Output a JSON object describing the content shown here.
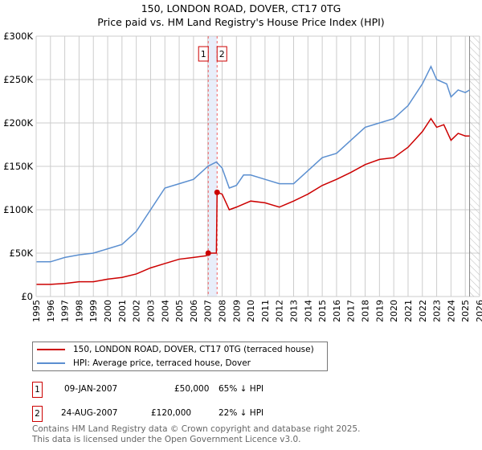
{
  "title_line1": "150, LONDON ROAD, DOVER, CT17 0TG",
  "title_line2": "Price paid vs. HM Land Registry's House Price Index (HPI)",
  "chart_data": {
    "type": "line",
    "xlim": [
      1995,
      2026
    ],
    "ylim": [
      0,
      300000
    ],
    "yticks": [
      {
        "v": 0,
        "label": "£0"
      },
      {
        "v": 50000,
        "label": "£50K"
      },
      {
        "v": 100000,
        "label": "£100K"
      },
      {
        "v": 150000,
        "label": "£150K"
      },
      {
        "v": 200000,
        "label": "£200K"
      },
      {
        "v": 250000,
        "label": "£250K"
      },
      {
        "v": 300000,
        "label": "£300K"
      }
    ],
    "xticks": [
      "1995",
      "1996",
      "1997",
      "1998",
      "1999",
      "2000",
      "2001",
      "2002",
      "2003",
      "2004",
      "2005",
      "2006",
      "2007",
      "2008",
      "2009",
      "2010",
      "2011",
      "2012",
      "2013",
      "2014",
      "2015",
      "2016",
      "2017",
      "2018",
      "2019",
      "2020",
      "2021",
      "2022",
      "2023",
      "2024",
      "2025",
      "2026"
    ],
    "grid": true,
    "forecast_hatch_from": 2025.3,
    "series": [
      {
        "name": "150, LONDON ROAD, DOVER, CT17 0TG (terraced house)",
        "color": "#cc0000",
        "x": [
          1995,
          1996,
          1997,
          1998,
          1999,
          2000,
          2001,
          2002,
          2003,
          2004,
          2005,
          2006,
          2006.9,
          2007.03,
          2007.6,
          2007.65,
          2008,
          2008.5,
          2009,
          2010,
          2011,
          2012,
          2013,
          2014,
          2015,
          2016,
          2017,
          2018,
          2019,
          2020,
          2021,
          2022,
          2022.6,
          2023,
          2023.5,
          2024,
          2024.5,
          2025,
          2025.3
        ],
        "y": [
          14000,
          14000,
          15000,
          17000,
          17000,
          20000,
          22000,
          26000,
          33000,
          38000,
          43000,
          45000,
          47000,
          50000,
          50000,
          120000,
          118000,
          100000,
          103000,
          110000,
          108000,
          103000,
          110000,
          118000,
          128000,
          135000,
          143000,
          152000,
          158000,
          160000,
          172000,
          190000,
          205000,
          195000,
          198000,
          180000,
          188000,
          185000,
          185000
        ]
      },
      {
        "name": "HPI: Average price, terraced house, Dover",
        "color": "#5b8fd0",
        "x": [
          1995,
          1996,
          1997,
          1998,
          1999,
          2000,
          2001,
          2002,
          2003,
          2004,
          2005,
          2006,
          2007,
          2007.6,
          2008,
          2008.5,
          2009,
          2009.5,
          2010,
          2011,
          2012,
          2013,
          2014,
          2015,
          2016,
          2017,
          2018,
          2019,
          2020,
          2021,
          2022,
          2022.6,
          2023,
          2023.7,
          2024,
          2024.5,
          2025,
          2025.3
        ],
        "y": [
          40000,
          40000,
          45000,
          48000,
          50000,
          55000,
          60000,
          75000,
          100000,
          125000,
          130000,
          135000,
          150000,
          155000,
          148000,
          125000,
          128000,
          140000,
          140000,
          135000,
          130000,
          130000,
          145000,
          160000,
          165000,
          180000,
          195000,
          200000,
          205000,
          220000,
          245000,
          265000,
          250000,
          245000,
          230000,
          238000,
          235000,
          238000
        ]
      }
    ],
    "sales": [
      {
        "label": "1",
        "x": 2007.03,
        "y": 50000,
        "date": "09-JAN-2007",
        "price": "£50,000",
        "hpi": "65% ↓ HPI"
      },
      {
        "label": "2",
        "x": 2007.65,
        "y": 120000,
        "date": "24-AUG-2007",
        "price": "£120,000",
        "hpi": "22% ↓ HPI"
      }
    ]
  },
  "footer_line1": "Contains HM Land Registry data © Crown copyright and database right 2025.",
  "footer_line2": "This data is licensed under the Open Government Licence v3.0."
}
